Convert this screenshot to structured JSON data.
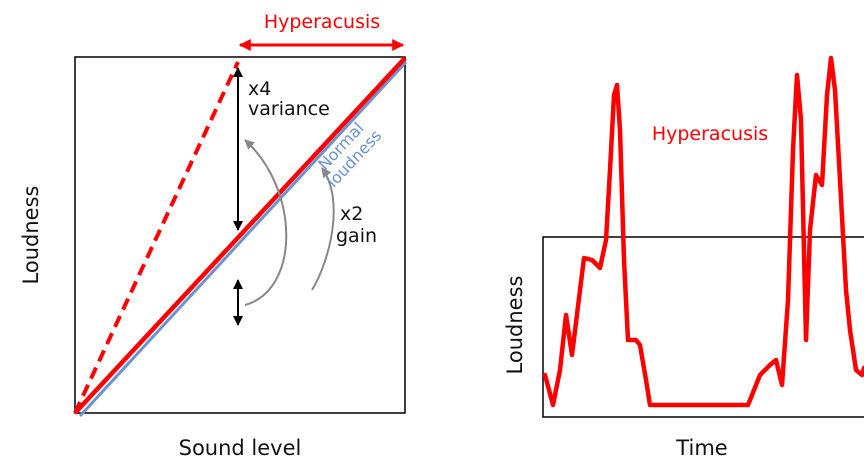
{
  "left_panel": {
    "hyperacusis_label": "Hyperacusis",
    "variance_line1": "x4",
    "variance_line2": "variance",
    "normal_line1": "Normal",
    "normal_line2": "loudness",
    "gain_line1": "x2",
    "gain_line2": "gain",
    "y_label": "Loudness",
    "x_label": "Sound level"
  },
  "right_panel": {
    "hyperacusis_label": "Hyperacusis",
    "y_label": "Loudness",
    "x_label": "Time"
  }
}
